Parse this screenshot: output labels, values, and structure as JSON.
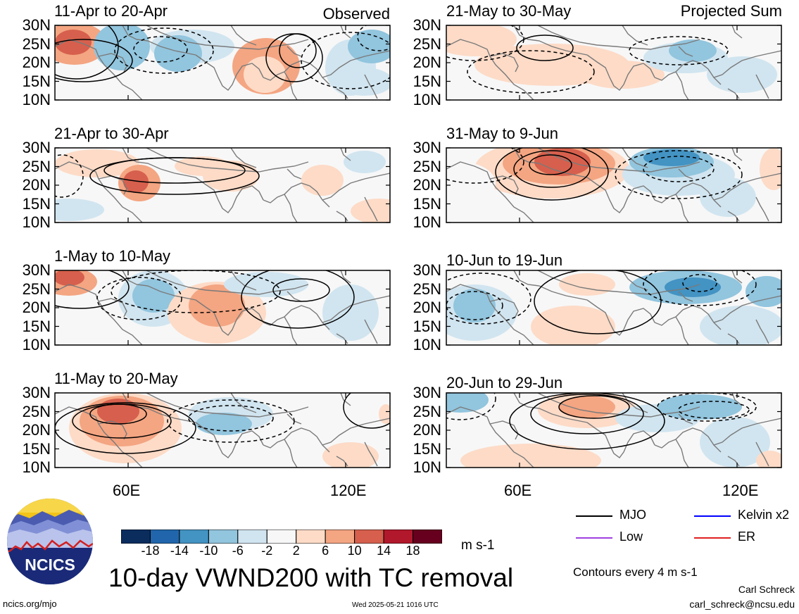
{
  "panels": [
    {
      "title": "11-Apr to 20-Apr",
      "corner": "Observed"
    },
    {
      "title": "21-May to 30-May",
      "corner": "Projected Sum"
    },
    {
      "title": "21-Apr to 30-Apr",
      "corner": ""
    },
    {
      "title": "31-May to 9-Jun",
      "corner": ""
    },
    {
      "title": "1-May to 10-May",
      "corner": ""
    },
    {
      "title": "10-Jun to 19-Jun",
      "corner": ""
    },
    {
      "title": "11-May to 20-May",
      "corner": ""
    },
    {
      "title": "20-Jun to 29-Jun",
      "corner": ""
    }
  ],
  "lat_labels": [
    "30N",
    "25N",
    "20N",
    "15N",
    "10N"
  ],
  "lon_labels": [
    "60E",
    "120E"
  ],
  "colorbar": {
    "colors": [
      "#0a2d5e",
      "#2166ac",
      "#4393c3",
      "#92c5de",
      "#d1e5f0",
      "#f7f7f7",
      "#fddbc7",
      "#f4a582",
      "#d6604d",
      "#b2182b",
      "#67001f"
    ],
    "labels": [
      "-18",
      "-14",
      "-10",
      "-6",
      "-2",
      "2",
      "6",
      "10",
      "14",
      "18"
    ],
    "units": "m s-1"
  },
  "legend": {
    "items": [
      {
        "label": "MJO",
        "color": "#000000"
      },
      {
        "label": "Kelvin x2",
        "color": "#0000ff"
      },
      {
        "label": "Low",
        "color": "#a040e0"
      },
      {
        "label": "ER",
        "color": "#e02020"
      }
    ],
    "contours_note": "Contours every 4 m s-1"
  },
  "main_title": "10-day VWND200 with TC removal",
  "logo_text": "NCICS",
  "footer": {
    "url": "ncics.org/mjo",
    "timestamp": "Wed 2025-05-21 1016 UTC",
    "author": "Carl Schreck",
    "email": "carl_schreck@ncsu.edu"
  }
}
